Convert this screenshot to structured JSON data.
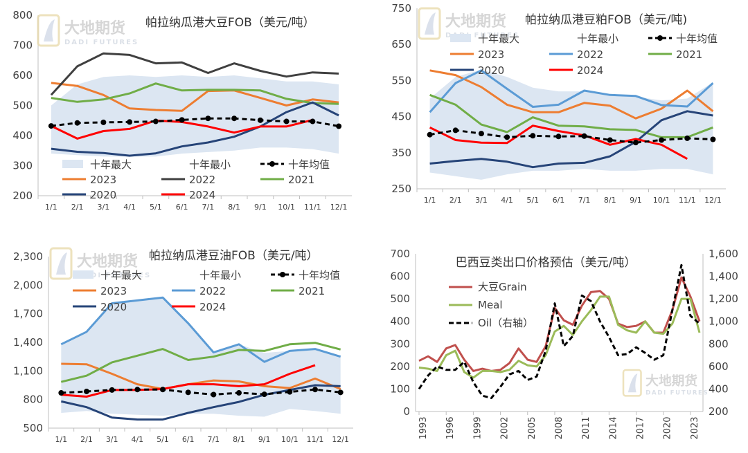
{
  "colors": {
    "band": "#dce6f2",
    "y2023": "#ed7d31",
    "y2022": "#5b9bd5",
    "y2022_top": "#404040",
    "y2021": "#70ad47",
    "y2020": "#264478",
    "y2024": "#ff0000",
    "avg": "#000000",
    "brazil_soy": "#c0504d",
    "brazil_meal": "#9bbb59",
    "brazil_oil": "#000000"
  },
  "watermark": {
    "name": "大地期货",
    "sub": "DADI FUTURES"
  },
  "chart_data": [
    {
      "type": "line",
      "title": "帕拉纳瓜港大豆FOB（美元/吨）",
      "categories": [
        "1/1",
        "2/1",
        "3/1",
        "4/1",
        "5/1",
        "6/1",
        "7/1",
        "8/1",
        "9/1",
        "10/1",
        "11/1",
        "12/1"
      ],
      "ylim": [
        200,
        800
      ],
      "yticks": [
        "200",
        "300",
        "400",
        "500",
        "600",
        "700",
        "800"
      ],
      "grid": false,
      "legend_position": "bottom-left",
      "band": {
        "name_max": "十年最大",
        "name_min": "十年最小",
        "max": [
          500,
          570,
          595,
          600,
          595,
          600,
          595,
          600,
          590,
          580,
          580,
          570
        ],
        "min": [
          340,
          335,
          330,
          330,
          330,
          340,
          345,
          350,
          360,
          360,
          355,
          340
        ]
      },
      "average": {
        "name": "十年均值",
        "values": [
          432,
          442,
          444,
          445,
          447,
          452,
          457,
          457,
          451,
          447,
          447,
          431
        ]
      },
      "series": [
        {
          "name": "2023",
          "color_key": "y2023",
          "values": [
            575,
            565,
            535,
            490,
            485,
            482,
            548,
            550,
            525,
            500,
            520,
            510
          ]
        },
        {
          "name": "2022",
          "color_key": "y2022_top",
          "values": [
            535,
            630,
            673,
            668,
            640,
            643,
            608,
            640,
            615,
            596,
            610,
            606
          ]
        },
        {
          "name": "2021",
          "color_key": "y2021",
          "values": [
            525,
            512,
            520,
            540,
            573,
            550,
            552,
            552,
            550,
            522,
            508,
            505
          ]
        },
        {
          "name": "2020",
          "color_key": "y2020",
          "values": [
            356,
            346,
            342,
            333,
            341,
            364,
            377,
            396,
            430,
            478,
            510,
            467
          ]
        },
        {
          "name": "2024",
          "color_key": "y2024",
          "values": [
            432,
            390,
            415,
            422,
            450,
            445,
            430,
            410,
            430,
            430,
            452,
            null
          ]
        }
      ]
    },
    {
      "type": "line",
      "title": "帕拉纳瓜港豆粕FOB（美元/吨)",
      "categories": [
        "1/1",
        "2/1",
        "3/1",
        "4/1",
        "5/1",
        "6/1",
        "7/1",
        "8/1",
        "9/1",
        "10/1",
        "11/1",
        "12/1"
      ],
      "ylim": [
        250,
        750
      ],
      "yticks": [
        "250",
        "350",
        "450",
        "550",
        "650",
        "750"
      ],
      "grid": false,
      "legend_position": "top-left",
      "band": {
        "name_max": "十年最大",
        "name_min": "十年最小",
        "max": [
          500,
          560,
          580,
          560,
          530,
          520,
          520,
          510,
          505,
          495,
          500,
          545
        ],
        "min": [
          295,
          285,
          275,
          290,
          300,
          300,
          305,
          300,
          300,
          305,
          305,
          290
        ]
      },
      "average": {
        "name": "十年均值",
        "values": [
          400,
          412,
          403,
          393,
          397,
          395,
          396,
          385,
          378,
          385,
          390,
          387
        ]
      },
      "series": [
        {
          "name": "2023",
          "color_key": "y2023",
          "values": [
            578,
            565,
            532,
            483,
            462,
            462,
            488,
            480,
            445,
            472,
            522,
            465
          ]
        },
        {
          "name": "2022",
          "color_key": "y2022",
          "values": [
            462,
            543,
            578,
            527,
            477,
            483,
            522,
            510,
            507,
            482,
            478,
            543
          ]
        },
        {
          "name": "2021",
          "color_key": "y2021",
          "values": [
            510,
            483,
            428,
            407,
            448,
            425,
            423,
            415,
            413,
            393,
            393,
            420
          ]
        },
        {
          "name": "2020",
          "color_key": "y2020",
          "values": [
            320,
            327,
            333,
            325,
            310,
            320,
            322,
            340,
            380,
            440,
            465,
            453
          ]
        },
        {
          "name": "2024",
          "color_key": "y2024",
          "values": [
            420,
            385,
            378,
            377,
            425,
            410,
            398,
            372,
            388,
            372,
            333,
            null
          ]
        }
      ]
    },
    {
      "type": "line",
      "title": "帕拉纳瓜港豆油FOB（美元/吨）",
      "categories": [
        "1/1",
        "2/1",
        "3/1",
        "4/1",
        "5/1",
        "6/1",
        "7/1",
        "8/1",
        "9/1",
        "10/1",
        "11/1",
        "12/1"
      ],
      "ylim": [
        500,
        2300
      ],
      "yticks": [
        "500",
        "800",
        "1,100",
        "1,400",
        "1,700",
        "2,000",
        "2,300"
      ],
      "grid": false,
      "legend_position": "top-left",
      "band": {
        "name_max": "十年最大",
        "name_min": "十年最小",
        "max": [
          1380,
          1510,
          1810,
          1840,
          1870,
          1600,
          1295,
          1380,
          1290,
          1310,
          1330,
          1250
        ],
        "min": [
          660,
          680,
          650,
          640,
          630,
          650,
          650,
          630,
          620,
          700,
          680,
          650
        ]
      },
      "average": {
        "name": "十年均值",
        "values": [
          870,
          885,
          900,
          905,
          905,
          875,
          852,
          870,
          855,
          880,
          905,
          875
        ]
      },
      "series": [
        {
          "name": "2023",
          "color_key": "y2023",
          "values": [
            1175,
            1170,
            1070,
            960,
            910,
            960,
            1000,
            990,
            940,
            920,
            1020,
            910
          ]
        },
        {
          "name": "2022",
          "color_key": "y2022",
          "values": [
            1380,
            1510,
            1810,
            1840,
            1870,
            1600,
            1295,
            1380,
            1195,
            1310,
            1330,
            1250
          ]
        },
        {
          "name": "2021",
          "color_key": "y2021",
          "values": [
            985,
            1050,
            1190,
            1260,
            1330,
            1215,
            1250,
            1320,
            1310,
            1380,
            1395,
            1325
          ]
        },
        {
          "name": "2020",
          "color_key": "y2020",
          "values": [
            780,
            720,
            610,
            590,
            590,
            660,
            720,
            775,
            850,
            900,
            950,
            940
          ]
        },
        {
          "name": "2024",
          "color_key": "y2024",
          "values": [
            850,
            830,
            900,
            900,
            910,
            960,
            960,
            940,
            960,
            1070,
            1160,
            null
          ]
        }
      ]
    },
    {
      "type": "line",
      "title": "巴西豆类出口价格预估（美元/吨）",
      "x_ticks": [
        "1993",
        "1996",
        "1999",
        "2002",
        "2005",
        "2008",
        "2011",
        "2014",
        "2017",
        "2020",
        "2023"
      ],
      "x_range": [
        1993,
        2024
      ],
      "ylim": [
        0,
        700
      ],
      "yticks": [
        "0",
        "100",
        "200",
        "300",
        "400",
        "500",
        "600",
        "700"
      ],
      "y2lim": [
        200,
        1600
      ],
      "y2ticks": [
        "200",
        "400",
        "600",
        "800",
        "1,000",
        "1,200",
        "1,400",
        "1,600"
      ],
      "grid": false,
      "legend_position": "top-left",
      "series": [
        {
          "name": "大豆Grain",
          "color_key": "brazil_soy",
          "axis": "left",
          "x": [
            1993,
            1994,
            1995,
            1996,
            1997,
            1998,
            1999,
            2000,
            2001,
            2002,
            2003,
            2004,
            2005,
            2006,
            2007,
            2008,
            2009,
            2010,
            2011,
            2012,
            2013,
            2014,
            2015,
            2016,
            2017,
            2018,
            2019,
            2020,
            2021,
            2022,
            2023,
            2024
          ],
          "y": [
            225,
            245,
            220,
            280,
            295,
            230,
            180,
            190,
            180,
            185,
            215,
            280,
            230,
            220,
            290,
            460,
            405,
            385,
            470,
            530,
            535,
            500,
            390,
            375,
            380,
            400,
            350,
            350,
            450,
            595,
            510,
            400
          ]
        },
        {
          "name": "Meal",
          "color_key": "brazil_meal",
          "axis": "left",
          "x": [
            1993,
            1994,
            1995,
            1996,
            1997,
            1998,
            1999,
            2000,
            2001,
            2002,
            2003,
            2004,
            2005,
            2006,
            2007,
            2008,
            2009,
            2010,
            2011,
            2012,
            2013,
            2014,
            2015,
            2016,
            2017,
            2018,
            2019,
            2020,
            2021,
            2022,
            2023,
            2024
          ],
          "y": [
            195,
            190,
            180,
            250,
            270,
            175,
            150,
            180,
            180,
            175,
            185,
            225,
            205,
            200,
            250,
            355,
            380,
            340,
            400,
            450,
            510,
            510,
            385,
            360,
            350,
            400,
            350,
            345,
            390,
            500,
            500,
            350
          ]
        },
        {
          "name": "Oil（右轴）",
          "color_key": "brazil_oil",
          "axis": "right",
          "dashed": true,
          "x": [
            1993,
            1994,
            1995,
            1996,
            1997,
            1998,
            1999,
            2000,
            2001,
            2002,
            2003,
            2004,
            2005,
            2006,
            2007,
            2008,
            2009,
            2010,
            2011,
            2012,
            2013,
            2014,
            2015,
            2016,
            2017,
            2018,
            2019,
            2020,
            2021,
            2022,
            2023,
            2024
          ],
          "y": [
            400,
            520,
            600,
            570,
            570,
            640,
            460,
            340,
            320,
            420,
            530,
            560,
            480,
            510,
            740,
            1160,
            780,
            870,
            1230,
            1180,
            1000,
            860,
            700,
            710,
            770,
            720,
            660,
            700,
            1100,
            1500,
            1050,
            980
          ]
        }
      ]
    }
  ]
}
